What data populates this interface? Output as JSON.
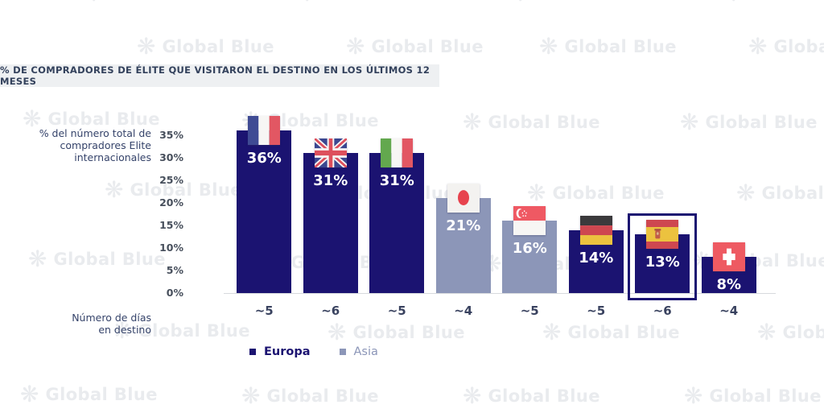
{
  "watermark": {
    "text": "Global Blue",
    "logo": "starburst-flower",
    "color": "#e9ebee"
  },
  "title": "% DE COMPRADORES DE ÉLITE QUE VISITARON EL DESTINO EN LOS ÚLTIMOS 12 MESES",
  "y_axis": {
    "label_lines": [
      "% del número total de",
      "compradores Elite",
      "internacionales"
    ],
    "ticks": [
      "35%",
      "30%",
      "25%",
      "20%",
      "15%",
      "10%",
      "5%",
      "0%"
    ]
  },
  "x_axis": {
    "label_lines": [
      "Número de días",
      "en destino"
    ]
  },
  "legend": [
    {
      "label": "Europa",
      "color": "#1b1371"
    },
    {
      "label": "Asia",
      "color": "#8c96b8"
    }
  ],
  "colors": {
    "europa_bar": "#1b1371",
    "asia_bar": "#8c96b8",
    "highlight_border": "#1b1371",
    "baseline": "#d7dade",
    "banner_bg": "#eef0f2",
    "banner_text": "#33415c",
    "value_label_text": "#ffffff"
  },
  "chart_data": {
    "type": "bar",
    "title": "% DE COMPRADORES DE ÉLITE QUE VISITARON EL DESTINO EN LOS ÚLTIMOS 12 MESES",
    "ylabel": "% del número total de compradores Elite internacionales",
    "xlabel": "Número de días en destino",
    "categories": [
      "Francia",
      "Reino Unido",
      "Italia",
      "Japón",
      "Singapur",
      "Alemania",
      "España",
      "Suiza"
    ],
    "flags": [
      "france",
      "uk",
      "italy",
      "japan",
      "singapore",
      "germany",
      "spain",
      "switzerland"
    ],
    "values": [
      36,
      31,
      31,
      21,
      16,
      14,
      13,
      8
    ],
    "value_labels": [
      "36%",
      "31%",
      "31%",
      "21%",
      "16%",
      "14%",
      "13%",
      "8%"
    ],
    "x_tick_labels": [
      "~5",
      "~6",
      "~5",
      "~4",
      "~5",
      "~5",
      "~6",
      "~4"
    ],
    "regions": [
      "Europa",
      "Europa",
      "Europa",
      "Asia",
      "Asia",
      "Europa",
      "Europa",
      "Europa"
    ],
    "series_colors": {
      "Europa": "#1b1371",
      "Asia": "#8c96b8"
    },
    "highlighted": "España",
    "ylim": [
      0,
      35
    ],
    "y_tick_step": 5,
    "grid": false,
    "legend_position": "bottom"
  }
}
